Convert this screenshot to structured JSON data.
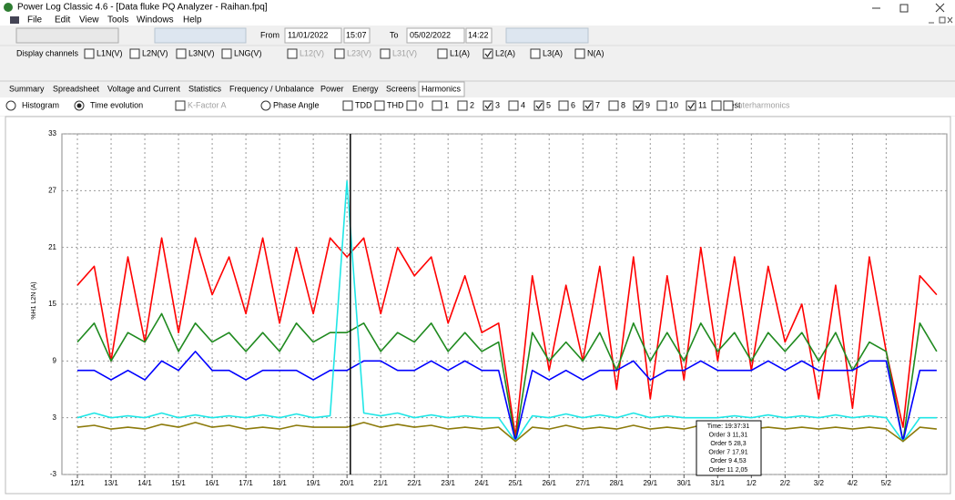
{
  "window": {
    "title": "Power Log Classic 4.6 - [Data fluke PQ Analyzer - Raihan.fpq]"
  },
  "menu": [
    "File",
    "Edit",
    "View",
    "Tools",
    "Windows",
    "Help"
  ],
  "toolbar": {
    "from_label": "From",
    "from_date": "11/01/2022",
    "from_time": "15:07",
    "to_label": "To",
    "to_date": "05/02/2022",
    "to_time": "14:22"
  },
  "channels": {
    "label": "Display channels",
    "items": [
      {
        "label": "L1N(V)",
        "checked": false,
        "disabled": false
      },
      {
        "label": "L2N(V)",
        "checked": false,
        "disabled": false
      },
      {
        "label": "L3N(V)",
        "checked": false,
        "disabled": false
      },
      {
        "label": "LNG(V)",
        "checked": false,
        "disabled": false
      },
      {
        "label": "L12(V)",
        "checked": false,
        "disabled": true
      },
      {
        "label": "L23(V)",
        "checked": false,
        "disabled": true
      },
      {
        "label": "L31(V)",
        "checked": false,
        "disabled": true
      },
      {
        "label": "L1(A)",
        "checked": false,
        "disabled": false
      },
      {
        "label": "L2(A)",
        "checked": true,
        "disabled": false
      },
      {
        "label": "L3(A)",
        "checked": false,
        "disabled": false
      },
      {
        "label": "N(A)",
        "checked": false,
        "disabled": false
      }
    ]
  },
  "tabs": {
    "items": [
      "Summary",
      "Spreadsheet",
      "Voltage and Current",
      "Statistics",
      "Frequency / Unbalance",
      "Power",
      "Energy",
      "Screens",
      "Harmonics"
    ],
    "active": 8
  },
  "options": {
    "radios": [
      {
        "label": "Histogram",
        "selected": false
      },
      {
        "label": "Time evolution",
        "selected": true
      }
    ],
    "kfactor": {
      "label": "K-Factor A",
      "disabled": true
    },
    "phase": {
      "label": "Phase Angle",
      "selected": false
    },
    "orders": [
      {
        "label": "TDD",
        "checked": false
      },
      {
        "label": "THD",
        "checked": false
      },
      {
        "label": "0",
        "checked": false
      },
      {
        "label": "1",
        "checked": false
      },
      {
        "label": "2",
        "checked": false
      },
      {
        "label": "3",
        "checked": true
      },
      {
        "label": "4",
        "checked": false
      },
      {
        "label": "5",
        "checked": true
      },
      {
        "label": "6",
        "checked": false
      },
      {
        "label": "7",
        "checked": true
      },
      {
        "label": "8",
        "checked": false
      },
      {
        "label": "9",
        "checked": true
      },
      {
        "label": "10",
        "checked": false
      },
      {
        "label": "11",
        "checked": true
      },
      {
        "label": "Rest",
        "checked": false
      }
    ],
    "interharmonics": {
      "label": "Interharmonics",
      "disabled": true
    }
  },
  "chart_data": {
    "type": "line",
    "y_label": "%H1 L2N (A)",
    "x": [
      0,
      0.5,
      1,
      1.5,
      2,
      2.5,
      3,
      3.5,
      4,
      4.5,
      5,
      5.5,
      6,
      6.5,
      7,
      7.5,
      8,
      8.5,
      9,
      9.5,
      10,
      10.5,
      11,
      11.5,
      12,
      12.5,
      13,
      13.5,
      14,
      14.5,
      15,
      15.5,
      16,
      16.5,
      17,
      17.5,
      18,
      18.5,
      19,
      19.5,
      20,
      20.5,
      21,
      21.5,
      22,
      22.5,
      23,
      23.5,
      24,
      24.5,
      25,
      25.5
    ],
    "xlim": [
      -0.46,
      25.8
    ],
    "xticks": [
      {
        "value": 0,
        "label": "12/1"
      },
      {
        "value": 1,
        "label": "13/1"
      },
      {
        "value": 2,
        "label": "14/1"
      },
      {
        "value": 3,
        "label": "15/1"
      },
      {
        "value": 4,
        "label": "16/1"
      },
      {
        "value": 5,
        "label": "17/1"
      },
      {
        "value": 6,
        "label": "18/1"
      },
      {
        "value": 7,
        "label": "19/1"
      },
      {
        "value": 8,
        "label": "20/1"
      },
      {
        "value": 9,
        "label": "21/1"
      },
      {
        "value": 10,
        "label": "22/1"
      },
      {
        "value": 11,
        "label": "23/1"
      },
      {
        "value": 12,
        "label": "24/1"
      },
      {
        "value": 13,
        "label": "25/1"
      },
      {
        "value": 14,
        "label": "26/1"
      },
      {
        "value": 15,
        "label": "27/1"
      },
      {
        "value": 16,
        "label": "28/1"
      },
      {
        "value": 17,
        "label": "29/1"
      },
      {
        "value": 18,
        "label": "30/1"
      },
      {
        "value": 19,
        "label": "31/1"
      },
      {
        "value": 20,
        "label": "1/2"
      },
      {
        "value": 21,
        "label": "2/2"
      },
      {
        "value": 22,
        "label": "3/2"
      },
      {
        "value": 23,
        "label": "4/2"
      },
      {
        "value": 24,
        "label": "5/2"
      }
    ],
    "ylim": [
      -3,
      33
    ],
    "yticks": [
      -3,
      3,
      9,
      15,
      21,
      27,
      33
    ],
    "grid": true,
    "cursor_x": 8.1,
    "series": [
      {
        "color": "#ff0000",
        "values": [
          17,
          19,
          9,
          20,
          11,
          22,
          12,
          22,
          16,
          20,
          14,
          22,
          13,
          21,
          14,
          22,
          20,
          22,
          14,
          21,
          18,
          20,
          13,
          18,
          12,
          13,
          1,
          18,
          8,
          17,
          9,
          19,
          6,
          20,
          5,
          18,
          7,
          21,
          9,
          20,
          8,
          19,
          11,
          15,
          5,
          17,
          4,
          20,
          10,
          2,
          18,
          16
        ]
      },
      {
        "color": "#1f8a1f",
        "values": [
          11,
          13,
          9,
          12,
          11,
          14,
          10,
          13,
          11,
          12,
          10,
          12,
          10,
          13,
          11,
          12,
          12,
          13,
          10,
          12,
          11,
          13,
          10,
          12,
          10,
          11,
          0.5,
          12,
          9,
          11,
          9,
          12,
          8,
          13,
          9,
          12,
          9,
          13,
          10,
          12,
          9,
          12,
          10,
          12,
          9,
          12,
          8,
          11,
          10,
          0.5,
          13,
          10
        ]
      },
      {
        "color": "#0000ff",
        "values": [
          8,
          8,
          7,
          8,
          7,
          9,
          8,
          10,
          8,
          8,
          7,
          8,
          8,
          8,
          7,
          8,
          8,
          9,
          9,
          8,
          8,
          9,
          8,
          9,
          8,
          8,
          0.5,
          8,
          7,
          8,
          7,
          8,
          8,
          9,
          7,
          8,
          8,
          9,
          8,
          8,
          8,
          9,
          8,
          9,
          8,
          8,
          8,
          9,
          9,
          0.5,
          8,
          8
        ]
      },
      {
        "color": "#1fe6e6",
        "values": [
          3,
          3.5,
          3,
          3.2,
          3,
          3.5,
          3,
          3.3,
          3,
          3.2,
          3,
          3.3,
          3,
          3.4,
          3,
          3.2,
          28,
          3.5,
          3.2,
          3.5,
          3,
          3.3,
          3,
          3.2,
          3,
          3,
          0.5,
          3.2,
          3,
          3.4,
          3,
          3.3,
          3,
          3.5,
          3,
          3.2,
          3,
          3,
          3,
          3.2,
          3,
          3.3,
          3,
          3.2,
          3,
          3.3,
          3,
          3.2,
          3,
          0.5,
          3,
          3
        ]
      },
      {
        "color": "#8c7a0a",
        "values": [
          2,
          2.2,
          1.8,
          2,
          1.8,
          2.3,
          2,
          2.5,
          2,
          2.2,
          1.8,
          2,
          1.8,
          2.2,
          2,
          2,
          2,
          2.5,
          2,
          2.3,
          2,
          2.2,
          1.8,
          2,
          1.8,
          2,
          0.5,
          2,
          1.8,
          2.2,
          1.8,
          2,
          1.8,
          2.2,
          1.8,
          2,
          1.8,
          2.2,
          1.8,
          2,
          1.8,
          2,
          1.8,
          2,
          1.8,
          2,
          1.8,
          2,
          1.8,
          0.5,
          2,
          1.8
        ]
      }
    ],
    "tooltip": [
      "Time: 19:37:31",
      "Order 3 11,31",
      "Order 5 28,3",
      "Order 7 17,91",
      "Order 9 4,53",
      "Order 11 2,05"
    ]
  }
}
